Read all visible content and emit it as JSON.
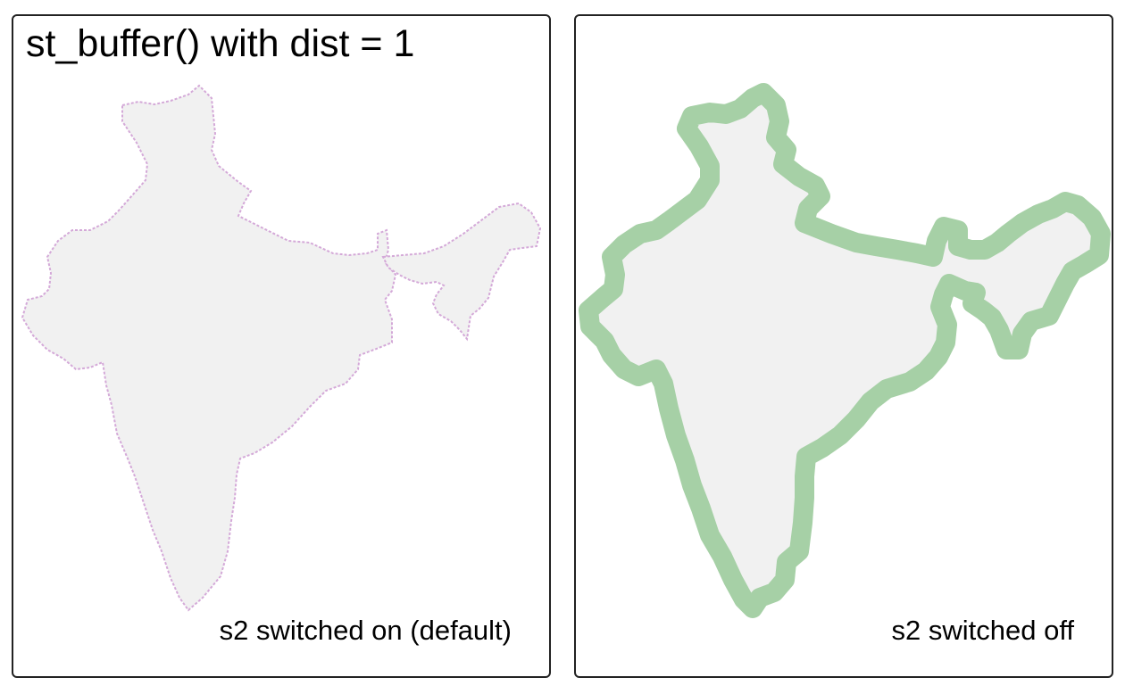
{
  "title": "st_buffer() with dist = 1",
  "panels": [
    {
      "caption": "s2 switched on (default)",
      "region_fill": "#f1f1f1",
      "buffer_color": "#d4a9d8"
    },
    {
      "caption": "s2 switched off",
      "region_fill": "#f1f1f1",
      "buffer_color": "#a6d0a6"
    }
  ]
}
